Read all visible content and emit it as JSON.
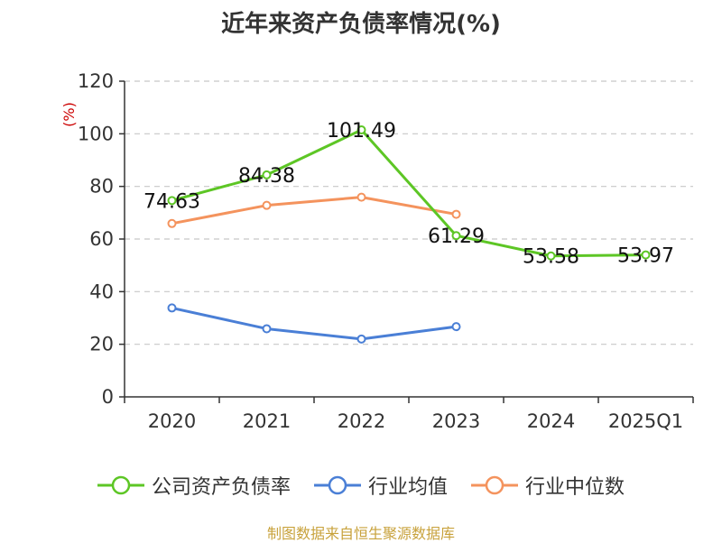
{
  "chart_data": {
    "type": "line",
    "title": "近年来资产负债率情况(%)",
    "ylabel": "(%)",
    "ylim": [
      0,
      120
    ],
    "yticks": [
      0,
      20,
      40,
      60,
      80,
      100,
      120
    ],
    "categories": [
      "2020",
      "2021",
      "2022",
      "2023",
      "2024",
      "2025Q1"
    ],
    "grid": true,
    "legend_position": "bottom",
    "series": [
      {
        "name": "公司资产负债率",
        "color": "#5dc625",
        "values": [
          74.63,
          84.38,
          101.49,
          61.29,
          53.58,
          53.97
        ],
        "labels": [
          "74.63",
          "84.38",
          "101.49",
          "61.29",
          "53.58",
          "53.97"
        ]
      },
      {
        "name": "行业均值",
        "color": "#4a7fd6",
        "values": [
          33.8,
          25.9,
          22.0,
          26.7,
          null,
          null
        ]
      },
      {
        "name": "行业中位数",
        "color": "#f4935d",
        "values": [
          65.9,
          72.8,
          75.9,
          69.4,
          null,
          null
        ]
      }
    ]
  },
  "source": "制图数据来自恒生聚源数据库"
}
